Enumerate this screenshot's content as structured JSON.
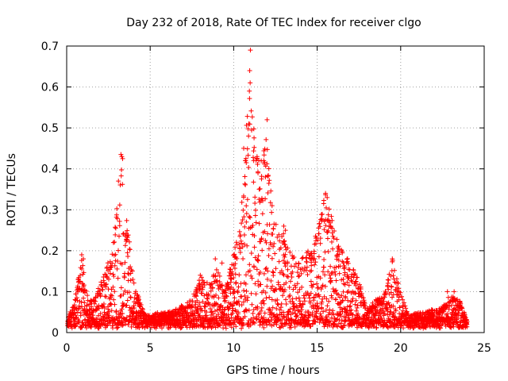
{
  "chart_data": {
    "type": "scatter",
    "title": "Day 232 of 2018, Rate Of TEC Index for receiver clgo",
    "xlabel": "GPS time / hours",
    "ylabel": "ROTI / TECUs",
    "xlim": [
      0,
      25
    ],
    "ylim": [
      0,
      0.7
    ],
    "xticks": [
      0,
      5,
      10,
      15,
      20,
      25
    ],
    "xtick_labels": [
      "0",
      "5",
      "10",
      "15",
      "20",
      "25"
    ],
    "yticks": [
      0,
      0.1,
      0.2,
      0.3,
      0.4,
      0.5,
      0.6,
      0.7
    ],
    "ytick_labels": [
      "0",
      "0.1",
      "0.2",
      "0.3",
      "0.4",
      "0.5",
      "0.6",
      "0.7"
    ],
    "grid": true,
    "marker": "+",
    "color": "#ff0000",
    "series": [
      {
        "name": "ROTI",
        "envelope": [
          [
            0.0,
            0.03
          ],
          [
            0.5,
            0.08
          ],
          [
            0.9,
            0.19
          ],
          [
            1.3,
            0.07
          ],
          [
            1.8,
            0.1
          ],
          [
            2.3,
            0.15
          ],
          [
            2.8,
            0.22
          ],
          [
            3.1,
            0.36
          ],
          [
            3.3,
            0.43
          ],
          [
            3.6,
            0.28
          ],
          [
            4.0,
            0.13
          ],
          [
            4.5,
            0.06
          ],
          [
            5.0,
            0.04
          ],
          [
            5.5,
            0.05
          ],
          [
            6.0,
            0.05
          ],
          [
            6.5,
            0.06
          ],
          [
            7.0,
            0.07
          ],
          [
            7.5,
            0.08
          ],
          [
            8.0,
            0.14
          ],
          [
            8.5,
            0.12
          ],
          [
            9.0,
            0.17
          ],
          [
            9.5,
            0.1
          ],
          [
            10.0,
            0.2
          ],
          [
            10.4,
            0.27
          ],
          [
            10.7,
            0.45
          ],
          [
            11.0,
            0.69
          ],
          [
            11.3,
            0.43
          ],
          [
            11.7,
            0.42
          ],
          [
            12.0,
            0.52
          ],
          [
            12.3,
            0.3
          ],
          [
            12.7,
            0.24
          ],
          [
            13.0,
            0.25
          ],
          [
            13.5,
            0.2
          ],
          [
            14.0,
            0.18
          ],
          [
            14.5,
            0.2
          ],
          [
            15.0,
            0.25
          ],
          [
            15.5,
            0.34
          ],
          [
            16.0,
            0.26
          ],
          [
            16.5,
            0.2
          ],
          [
            17.0,
            0.17
          ],
          [
            17.5,
            0.13
          ],
          [
            18.0,
            0.06
          ],
          [
            18.5,
            0.08
          ],
          [
            19.0,
            0.09
          ],
          [
            19.5,
            0.18
          ],
          [
            20.0,
            0.1
          ],
          [
            20.5,
            0.04
          ],
          [
            21.0,
            0.05
          ],
          [
            21.5,
            0.05
          ],
          [
            22.0,
            0.06
          ],
          [
            22.5,
            0.06
          ],
          [
            23.0,
            0.1
          ],
          [
            23.5,
            0.08
          ],
          [
            24.0,
            0.03
          ]
        ],
        "points": [
          [
            11.0,
            0.69
          ],
          [
            10.96,
            0.64
          ],
          [
            10.94,
            0.59
          ],
          [
            10.9,
            0.51
          ],
          [
            12.0,
            0.52
          ],
          [
            3.25,
            0.435
          ],
          [
            3.3,
            0.43
          ],
          [
            3.35,
            0.425
          ],
          [
            3.1,
            0.37
          ],
          [
            10.6,
            0.45
          ],
          [
            10.7,
            0.42
          ],
          [
            11.4,
            0.43
          ],
          [
            11.2,
            0.42
          ],
          [
            11.8,
            0.42
          ],
          [
            11.9,
            0.38
          ],
          [
            15.5,
            0.34
          ],
          [
            15.6,
            0.33
          ],
          [
            12.3,
            0.31
          ],
          [
            13.0,
            0.26
          ],
          [
            13.1,
            0.25
          ],
          [
            0.9,
            0.19
          ],
          [
            1.0,
            0.18
          ],
          [
            8.9,
            0.18
          ],
          [
            9.3,
            0.17
          ],
          [
            19.5,
            0.18
          ],
          [
            8.0,
            0.14
          ],
          [
            7.8,
            0.11
          ],
          [
            23.2,
            0.1
          ],
          [
            22.8,
            0.1
          ],
          [
            23.4,
            0.07
          ]
        ]
      }
    ]
  }
}
